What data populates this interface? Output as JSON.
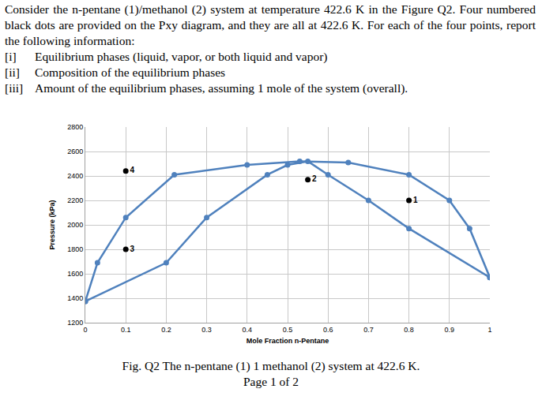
{
  "document": {
    "question": "Consider the n-pentane (1)/methanol (2) system at temperature 422.6 K in the Figure Q2. Four numbered black dots are provided on the Pxy diagram, and they are all at 422.6 K. For each of the four points, report the following information:",
    "items": [
      {
        "number": "[i]",
        "text": "Equilibrium phases (liquid, vapor, or both liquid and vapor)"
      },
      {
        "number": "[ii]",
        "text": "Composition of the equilibrium phases"
      },
      {
        "number": "[iii]",
        "text": "Amount of the equilibrium phases, assuming 1 mole of the system (overall)."
      }
    ],
    "caption": "Fig. Q2 The n-pentane (1) 1 methanol (2) system at 422.6 K.",
    "page": "Page 1 of 2"
  },
  "chart_data": {
    "type": "scatter",
    "x_label": "Mole Fraction n-Pentane",
    "y_label": "Pressure (kPa)",
    "xlim": [
      0,
      1
    ],
    "xticks": [
      0,
      0.1,
      0.2,
      0.3,
      0.4,
      0.5,
      0.6,
      0.7,
      0.8,
      0.9,
      1
    ],
    "ylim": [
      1200,
      2800
    ],
    "yticks": [
      1200,
      1400,
      1600,
      1800,
      2000,
      2200,
      2400,
      2600,
      2800
    ],
    "grid": true,
    "series": [
      {
        "color": "#4f81bd",
        "marker": "circle",
        "line_style": "solid",
        "x": [
          0,
          0.03,
          0.1,
          0.22,
          0.4,
          0.53,
          0.65,
          0.8,
          0.9,
          0.95,
          1
        ],
        "values": [
          1375,
          1690,
          2060,
          2410,
          2490,
          2520,
          2510,
          2410,
          2200,
          1970,
          1570
        ]
      },
      {
        "color": "#4f81bd",
        "marker": "circle",
        "line_style": "solid",
        "x": [
          0,
          0.2,
          0.3,
          0.45,
          0.5,
          0.55,
          0.6,
          0.7,
          0.8,
          1
        ],
        "values": [
          1375,
          1690,
          2060,
          2410,
          2490,
          2520,
          2410,
          2200,
          1970,
          1570
        ]
      }
    ],
    "points": [
      {
        "label": "1",
        "x": 0.8,
        "y": 2200
      },
      {
        "label": "2",
        "x": 0.55,
        "y": 2370
      },
      {
        "label": "3",
        "x": 0.1,
        "y": 1800
      },
      {
        "label": "4",
        "x": 0.1,
        "y": 2440
      }
    ],
    "points_color": "#000000"
  }
}
